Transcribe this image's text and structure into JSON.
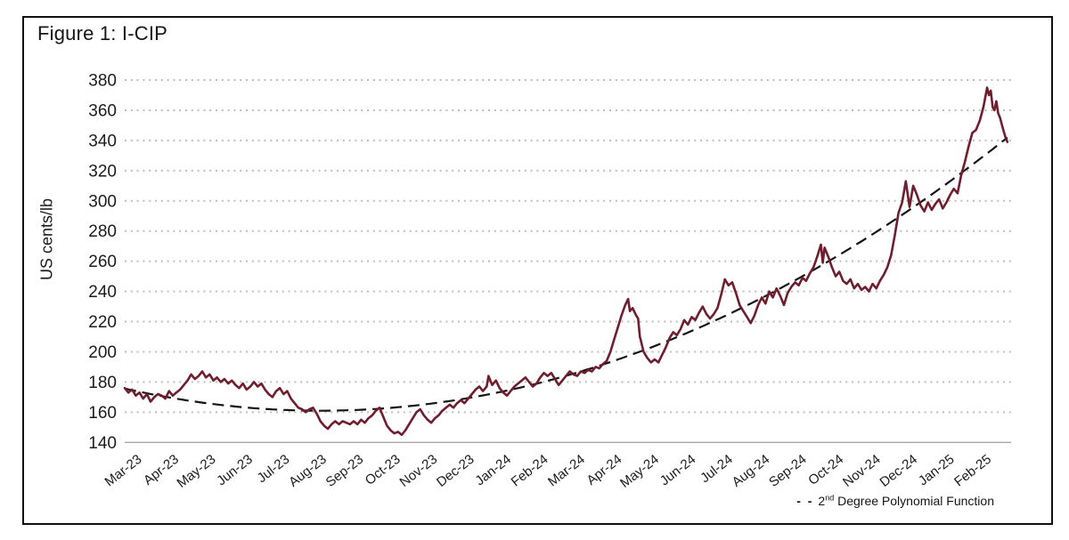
{
  "figure": {
    "title": "Figure 1: I-CIP"
  },
  "legend": {
    "dash_sample": "- -",
    "label_num": "2",
    "label_sup": "nd",
    "label_rest": " Degree Polynomial Function"
  },
  "colors": {
    "series_line": "#6f1e2e",
    "trend_line": "#141414",
    "gridline": "#bdbdbd",
    "baseline": "#a8a8a8",
    "frame_border": "#111111",
    "text": "#1c1c1c"
  },
  "chart_data": {
    "type": "line",
    "title": "Figure 1: I-CIP",
    "xlabel": "",
    "ylabel": "US cents/lb",
    "ylim": [
      140,
      380
    ],
    "yticks": [
      380,
      360,
      340,
      320,
      300,
      280,
      260,
      240,
      220,
      200,
      180,
      160,
      140
    ],
    "grid": "horizontal-dotted",
    "legend_position": "bottom-right",
    "x_categories": [
      "Mar-23",
      "Apr-23",
      "May-23",
      "Jun-23",
      "Jul-23",
      "Aug-23",
      "Sep-23",
      "Oct-23",
      "Nov-23",
      "Dec-23",
      "Jan-24",
      "Feb-24",
      "Mar-24",
      "Apr-24",
      "May-24",
      "Jun-24",
      "Jul-24",
      "Aug-24",
      "Sep-24",
      "Oct-24",
      "Nov-24",
      "Dec-24",
      "Jan-25",
      "Feb-25"
    ],
    "x_unit": "months-since-Mar-2023",
    "series": [
      {
        "name": "I-CIP",
        "style": "solid",
        "points": [
          [
            0,
            176
          ],
          [
            0.1,
            173
          ],
          [
            0.2,
            175
          ],
          [
            0.3,
            171
          ],
          [
            0.4,
            173
          ],
          [
            0.5,
            169
          ],
          [
            0.6,
            172
          ],
          [
            0.7,
            167
          ],
          [
            0.8,
            170
          ],
          [
            0.9,
            172
          ],
          [
            1,
            171
          ],
          [
            1.1,
            169
          ],
          [
            1.2,
            174
          ],
          [
            1.3,
            171
          ],
          [
            1.4,
            173
          ],
          [
            1.5,
            175
          ],
          [
            1.6,
            178
          ],
          [
            1.7,
            181
          ],
          [
            1.8,
            185
          ],
          [
            1.9,
            182
          ],
          [
            2,
            184
          ],
          [
            2.1,
            187
          ],
          [
            2.2,
            183
          ],
          [
            2.3,
            185
          ],
          [
            2.4,
            181
          ],
          [
            2.5,
            183
          ],
          [
            2.6,
            180
          ],
          [
            2.7,
            182
          ],
          [
            2.8,
            179
          ],
          [
            2.9,
            181
          ],
          [
            3,
            178
          ],
          [
            3.1,
            176
          ],
          [
            3.2,
            179
          ],
          [
            3.3,
            175
          ],
          [
            3.4,
            177
          ],
          [
            3.5,
            180
          ],
          [
            3.6,
            177
          ],
          [
            3.7,
            179
          ],
          [
            3.8,
            175
          ],
          [
            3.9,
            172
          ],
          [
            4,
            170
          ],
          [
            4.1,
            174
          ],
          [
            4.2,
            176
          ],
          [
            4.3,
            172
          ],
          [
            4.4,
            174
          ],
          [
            4.5,
            169
          ],
          [
            4.6,
            166
          ],
          [
            4.7,
            163
          ],
          [
            4.8,
            162
          ],
          [
            4.9,
            160
          ],
          [
            5,
            162
          ],
          [
            5.1,
            163
          ],
          [
            5.2,
            159
          ],
          [
            5.3,
            154
          ],
          [
            5.4,
            151
          ],
          [
            5.5,
            149
          ],
          [
            5.6,
            152
          ],
          [
            5.7,
            154
          ],
          [
            5.8,
            152
          ],
          [
            5.9,
            154
          ],
          [
            6,
            153
          ],
          [
            6.1,
            152
          ],
          [
            6.2,
            154
          ],
          [
            6.3,
            152
          ],
          [
            6.4,
            155
          ],
          [
            6.5,
            153
          ],
          [
            6.6,
            156
          ],
          [
            6.7,
            158
          ],
          [
            6.8,
            161
          ],
          [
            6.9,
            163
          ],
          [
            7,
            157
          ],
          [
            7.1,
            151
          ],
          [
            7.2,
            148
          ],
          [
            7.3,
            146
          ],
          [
            7.4,
            147
          ],
          [
            7.5,
            145
          ],
          [
            7.6,
            148
          ],
          [
            7.7,
            152
          ],
          [
            7.8,
            156
          ],
          [
            7.9,
            160
          ],
          [
            8,
            162
          ],
          [
            8.1,
            158
          ],
          [
            8.2,
            155
          ],
          [
            8.3,
            153
          ],
          [
            8.4,
            156
          ],
          [
            8.5,
            158
          ],
          [
            8.6,
            161
          ],
          [
            8.7,
            163
          ],
          [
            8.8,
            165
          ],
          [
            8.9,
            163
          ],
          [
            9,
            166
          ],
          [
            9.1,
            168
          ],
          [
            9.2,
            166
          ],
          [
            9.3,
            169
          ],
          [
            9.4,
            172
          ],
          [
            9.5,
            175
          ],
          [
            9.6,
            177
          ],
          [
            9.7,
            174
          ],
          [
            9.8,
            177
          ],
          [
            9.85,
            184
          ],
          [
            9.95,
            178
          ],
          [
            10.05,
            181
          ],
          [
            10.15,
            176
          ],
          [
            10.25,
            173
          ],
          [
            10.35,
            171
          ],
          [
            10.45,
            174
          ],
          [
            10.55,
            177
          ],
          [
            10.65,
            179
          ],
          [
            10.75,
            181
          ],
          [
            10.85,
            183
          ],
          [
            10.95,
            180
          ],
          [
            11.05,
            177
          ],
          [
            11.15,
            179
          ],
          [
            11.25,
            183
          ],
          [
            11.35,
            186
          ],
          [
            11.45,
            184
          ],
          [
            11.55,
            186
          ],
          [
            11.65,
            182
          ],
          [
            11.75,
            178
          ],
          [
            11.85,
            181
          ],
          [
            11.95,
            184
          ],
          [
            12.05,
            187
          ],
          [
            12.15,
            185
          ],
          [
            12.25,
            184
          ],
          [
            12.35,
            187
          ],
          [
            12.45,
            186
          ],
          [
            12.55,
            188
          ],
          [
            12.65,
            187
          ],
          [
            12.75,
            190
          ],
          [
            12.85,
            189
          ],
          [
            12.95,
            192
          ],
          [
            13.05,
            194
          ],
          [
            13.15,
            200
          ],
          [
            13.25,
            208
          ],
          [
            13.35,
            216
          ],
          [
            13.45,
            224
          ],
          [
            13.55,
            231
          ],
          [
            13.63,
            235
          ],
          [
            13.68,
            227
          ],
          [
            13.75,
            229
          ],
          [
            13.85,
            224
          ],
          [
            13.9,
            222
          ],
          [
            13.95,
            210
          ],
          [
            14.05,
            200
          ],
          [
            14.15,
            196
          ],
          [
            14.25,
            193
          ],
          [
            14.35,
            195
          ],
          [
            14.45,
            193
          ],
          [
            14.55,
            198
          ],
          [
            14.65,
            203
          ],
          [
            14.75,
            209
          ],
          [
            14.85,
            213
          ],
          [
            14.95,
            211
          ],
          [
            15.05,
            215
          ],
          [
            15.15,
            221
          ],
          [
            15.25,
            218
          ],
          [
            15.35,
            223
          ],
          [
            15.45,
            221
          ],
          [
            15.55,
            226
          ],
          [
            15.65,
            230
          ],
          [
            15.75,
            225
          ],
          [
            15.85,
            222
          ],
          [
            15.95,
            225
          ],
          [
            16.05,
            229
          ],
          [
            16.15,
            238
          ],
          [
            16.25,
            248
          ],
          [
            16.35,
            244
          ],
          [
            16.45,
            246
          ],
          [
            16.55,
            239
          ],
          [
            16.65,
            231
          ],
          [
            16.75,
            227
          ],
          [
            16.85,
            223
          ],
          [
            16.95,
            219
          ],
          [
            17.05,
            224
          ],
          [
            17.15,
            231
          ],
          [
            17.25,
            236
          ],
          [
            17.35,
            232
          ],
          [
            17.45,
            240
          ],
          [
            17.55,
            236
          ],
          [
            17.65,
            242
          ],
          [
            17.75,
            237
          ],
          [
            17.85,
            231
          ],
          [
            17.95,
            239
          ],
          [
            18.05,
            243
          ],
          [
            18.15,
            246
          ],
          [
            18.25,
            244
          ],
          [
            18.35,
            249
          ],
          [
            18.45,
            247
          ],
          [
            18.55,
            252
          ],
          [
            18.65,
            256
          ],
          [
            18.75,
            263
          ],
          [
            18.85,
            271
          ],
          [
            18.9,
            259
          ],
          [
            18.95,
            269
          ],
          [
            19.05,
            263
          ],
          [
            19.15,
            256
          ],
          [
            19.25,
            250
          ],
          [
            19.35,
            253
          ],
          [
            19.45,
            247
          ],
          [
            19.55,
            245
          ],
          [
            19.65,
            248
          ],
          [
            19.75,
            242
          ],
          [
            19.85,
            245
          ],
          [
            19.95,
            241
          ],
          [
            20.05,
            243
          ],
          [
            20.15,
            240
          ],
          [
            20.25,
            245
          ],
          [
            20.35,
            242
          ],
          [
            20.45,
            247
          ],
          [
            20.55,
            251
          ],
          [
            20.65,
            256
          ],
          [
            20.75,
            264
          ],
          [
            20.85,
            277
          ],
          [
            20.95,
            292
          ],
          [
            21.05,
            299
          ],
          [
            21.15,
            313
          ],
          [
            21.25,
            296
          ],
          [
            21.35,
            310
          ],
          [
            21.45,
            304
          ],
          [
            21.55,
            297
          ],
          [
            21.65,
            293
          ],
          [
            21.75,
            299
          ],
          [
            21.85,
            294
          ],
          [
            21.95,
            298
          ],
          [
            22.05,
            301
          ],
          [
            22.15,
            295
          ],
          [
            22.25,
            299
          ],
          [
            22.35,
            304
          ],
          [
            22.45,
            308
          ],
          [
            22.55,
            305
          ],
          [
            22.65,
            317
          ],
          [
            22.75,
            326
          ],
          [
            22.85,
            336
          ],
          [
            22.95,
            345
          ],
          [
            23.05,
            347
          ],
          [
            23.15,
            353
          ],
          [
            23.25,
            362
          ],
          [
            23.35,
            375
          ],
          [
            23.4,
            370
          ],
          [
            23.45,
            373
          ],
          [
            23.5,
            362
          ],
          [
            23.55,
            360
          ],
          [
            23.6,
            366
          ],
          [
            23.65,
            358
          ],
          [
            23.7,
            355
          ],
          [
            23.8,
            346
          ],
          [
            23.85,
            342
          ],
          [
            23.9,
            339
          ]
        ]
      },
      {
        "name": "2nd Degree Polynomial Function",
        "style": "dashed",
        "trend": {
          "vertex_t": 5.3,
          "min_value": 161,
          "k": 0.523,
          "t_start": 0,
          "t_end": 23.95
        }
      }
    ]
  }
}
